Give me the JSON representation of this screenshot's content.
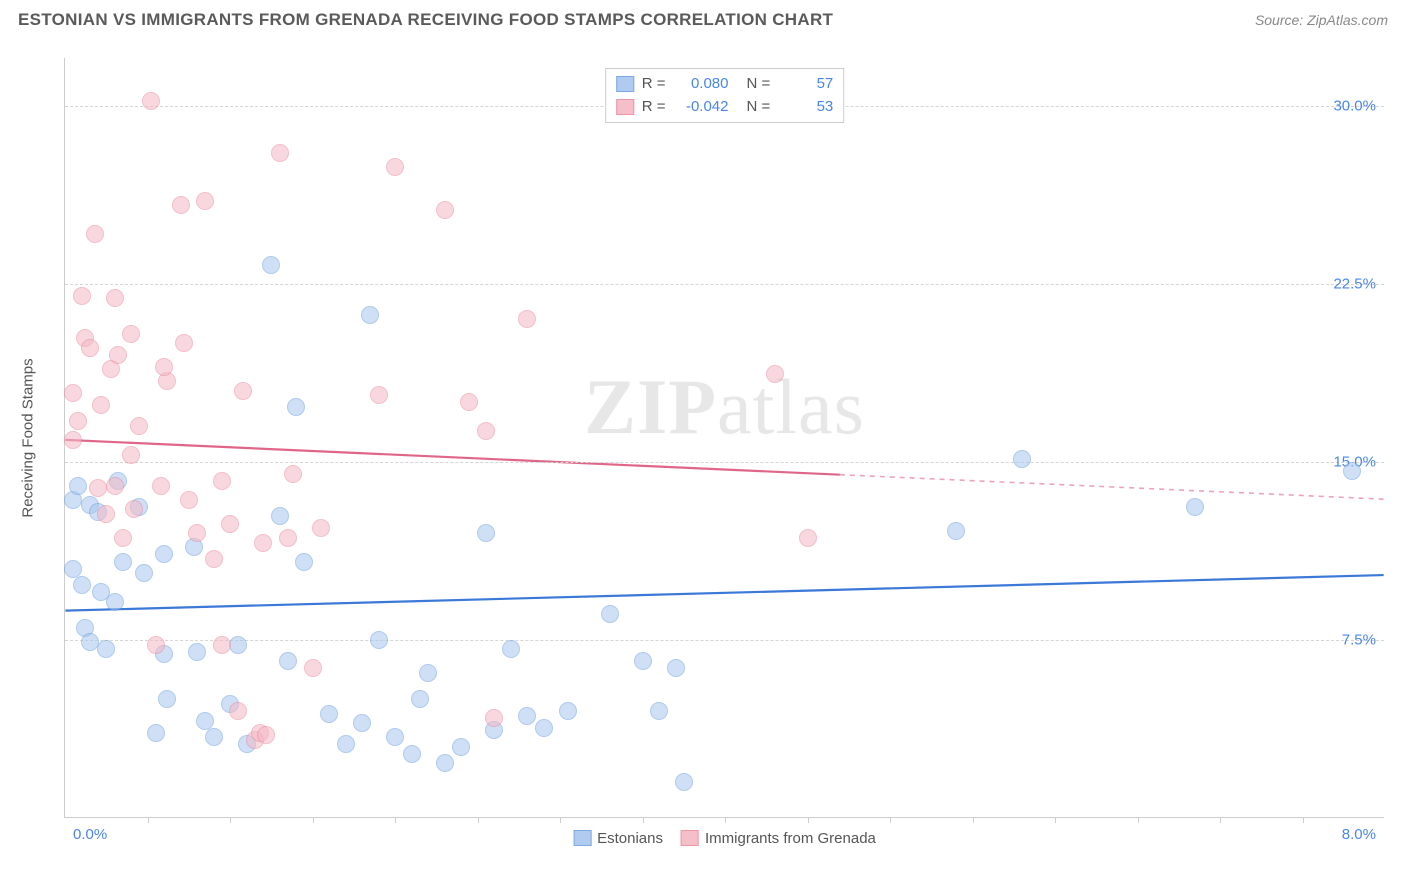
{
  "header": {
    "title": "ESTONIAN VS IMMIGRANTS FROM GRENADA RECEIVING FOOD STAMPS CORRELATION CHART",
    "source_prefix": "Source: ",
    "source_name": "ZipAtlas.com"
  },
  "chart": {
    "type": "scatter",
    "y_axis_title": "Receiving Food Stamps",
    "xlim": [
      0.0,
      8.0
    ],
    "ylim": [
      0.0,
      32.0
    ],
    "x_tick_labels": {
      "min": "0.0%",
      "max": "8.0%"
    },
    "x_minor_ticks": [
      0.5,
      1.0,
      1.5,
      2.0,
      2.5,
      3.0,
      3.5,
      4.0,
      4.5,
      5.0,
      5.5,
      6.0,
      6.5,
      7.0,
      7.5
    ],
    "y_gridlines": [
      {
        "value": 7.5,
        "label": "7.5%"
      },
      {
        "value": 15.0,
        "label": "15.0%"
      },
      {
        "value": 22.5,
        "label": "22.5%"
      },
      {
        "value": 30.0,
        "label": "30.0%"
      }
    ],
    "background_color": "#ffffff",
    "grid_color": "#d5d5d5",
    "axis_color": "#cccccc",
    "tick_label_color": "#4a86e8",
    "watermark": "ZIPatlas",
    "series": [
      {
        "name": "Estonians",
        "fill_color": "#a8c6ee",
        "fill_opacity": 0.55,
        "stroke_color": "#6fa0dd",
        "line_color": "#3b78d8",
        "marker_radius": 9,
        "regression": {
          "y_at_xmin": 8.7,
          "y_at_xmax": 10.2,
          "solid_until_x": 8.0
        },
        "stats": {
          "R": "0.080",
          "N": "57"
        },
        "points": [
          [
            0.05,
            13.4
          ],
          [
            0.05,
            10.5
          ],
          [
            0.1,
            9.8
          ],
          [
            0.12,
            8.0
          ],
          [
            0.15,
            13.2
          ],
          [
            0.2,
            12.9
          ],
          [
            0.22,
            9.5
          ],
          [
            0.25,
            7.1
          ],
          [
            0.3,
            9.1
          ],
          [
            0.32,
            14.2
          ],
          [
            0.35,
            10.8
          ],
          [
            0.45,
            13.1
          ],
          [
            0.48,
            10.3
          ],
          [
            0.55,
            3.6
          ],
          [
            0.6,
            6.9
          ],
          [
            0.6,
            11.1
          ],
          [
            0.62,
            5.0
          ],
          [
            0.78,
            11.4
          ],
          [
            0.8,
            7.0
          ],
          [
            0.85,
            4.1
          ],
          [
            0.9,
            3.4
          ],
          [
            1.0,
            4.8
          ],
          [
            1.05,
            7.3
          ],
          [
            1.1,
            3.1
          ],
          [
            1.25,
            23.3
          ],
          [
            1.3,
            12.7
          ],
          [
            1.35,
            6.6
          ],
          [
            1.4,
            17.3
          ],
          [
            1.45,
            10.8
          ],
          [
            1.6,
            4.4
          ],
          [
            1.7,
            3.1
          ],
          [
            1.8,
            4.0
          ],
          [
            1.85,
            21.2
          ],
          [
            1.9,
            7.5
          ],
          [
            2.0,
            3.4
          ],
          [
            2.1,
            2.7
          ],
          [
            2.15,
            5.0
          ],
          [
            2.2,
            6.1
          ],
          [
            2.3,
            2.3
          ],
          [
            2.4,
            3.0
          ],
          [
            2.55,
            12.0
          ],
          [
            2.6,
            3.7
          ],
          [
            2.7,
            7.1
          ],
          [
            2.8,
            4.3
          ],
          [
            2.9,
            3.8
          ],
          [
            3.05,
            4.5
          ],
          [
            3.3,
            8.6
          ],
          [
            3.5,
            6.6
          ],
          [
            3.6,
            4.5
          ],
          [
            3.7,
            6.3
          ],
          [
            3.75,
            1.5
          ],
          [
            5.4,
            12.1
          ],
          [
            5.8,
            15.1
          ],
          [
            6.85,
            13.1
          ],
          [
            7.8,
            14.6
          ],
          [
            0.15,
            7.4
          ],
          [
            0.08,
            14.0
          ]
        ]
      },
      {
        "name": "Immigrants from Grenada",
        "fill_color": "#f4b9c4",
        "fill_opacity": 0.55,
        "stroke_color": "#e98ba0",
        "line_color": "#e06689",
        "marker_radius": 9,
        "regression": {
          "y_at_xmin": 15.9,
          "y_at_xmax": 13.4,
          "solid_until_x": 4.7
        },
        "stats": {
          "R": "-0.042",
          "N": "53"
        },
        "points": [
          [
            0.05,
            15.9
          ],
          [
            0.08,
            16.7
          ],
          [
            0.1,
            22.0
          ],
          [
            0.12,
            20.2
          ],
          [
            0.15,
            19.8
          ],
          [
            0.18,
            24.6
          ],
          [
            0.2,
            13.9
          ],
          [
            0.22,
            17.4
          ],
          [
            0.25,
            12.8
          ],
          [
            0.28,
            18.9
          ],
          [
            0.3,
            21.9
          ],
          [
            0.32,
            19.5
          ],
          [
            0.35,
            11.8
          ],
          [
            0.4,
            20.4
          ],
          [
            0.42,
            13.0
          ],
          [
            0.45,
            16.5
          ],
          [
            0.52,
            30.2
          ],
          [
            0.55,
            7.3
          ],
          [
            0.58,
            14.0
          ],
          [
            0.62,
            18.4
          ],
          [
            0.7,
            25.8
          ],
          [
            0.72,
            20.0
          ],
          [
            0.75,
            13.4
          ],
          [
            0.8,
            12.0
          ],
          [
            0.85,
            26.0
          ],
          [
            0.9,
            10.9
          ],
          [
            0.95,
            7.3
          ],
          [
            1.0,
            12.4
          ],
          [
            1.05,
            4.5
          ],
          [
            1.08,
            18.0
          ],
          [
            1.15,
            3.3
          ],
          [
            1.18,
            3.6
          ],
          [
            1.2,
            11.6
          ],
          [
            1.22,
            3.5
          ],
          [
            1.3,
            28.0
          ],
          [
            1.35,
            11.8
          ],
          [
            1.38,
            14.5
          ],
          [
            1.5,
            6.3
          ],
          [
            1.55,
            12.2
          ],
          [
            1.9,
            17.8
          ],
          [
            2.0,
            27.4
          ],
          [
            2.3,
            25.6
          ],
          [
            2.45,
            17.5
          ],
          [
            2.55,
            16.3
          ],
          [
            2.6,
            4.2
          ],
          [
            2.8,
            21.0
          ],
          [
            4.3,
            18.7
          ],
          [
            4.5,
            11.8
          ],
          [
            0.05,
            17.9
          ],
          [
            0.3,
            14.0
          ],
          [
            0.6,
            19.0
          ],
          [
            0.4,
            15.3
          ],
          [
            0.95,
            14.2
          ]
        ]
      }
    ],
    "legend_top": {
      "rows": [
        {
          "swatch": 0,
          "r_label": "R =",
          "n_label": "N ="
        },
        {
          "swatch": 1,
          "r_label": "R =",
          "n_label": "N ="
        }
      ]
    },
    "legend_bottom": [
      {
        "swatch": 0
      },
      {
        "swatch": 1
      }
    ]
  }
}
